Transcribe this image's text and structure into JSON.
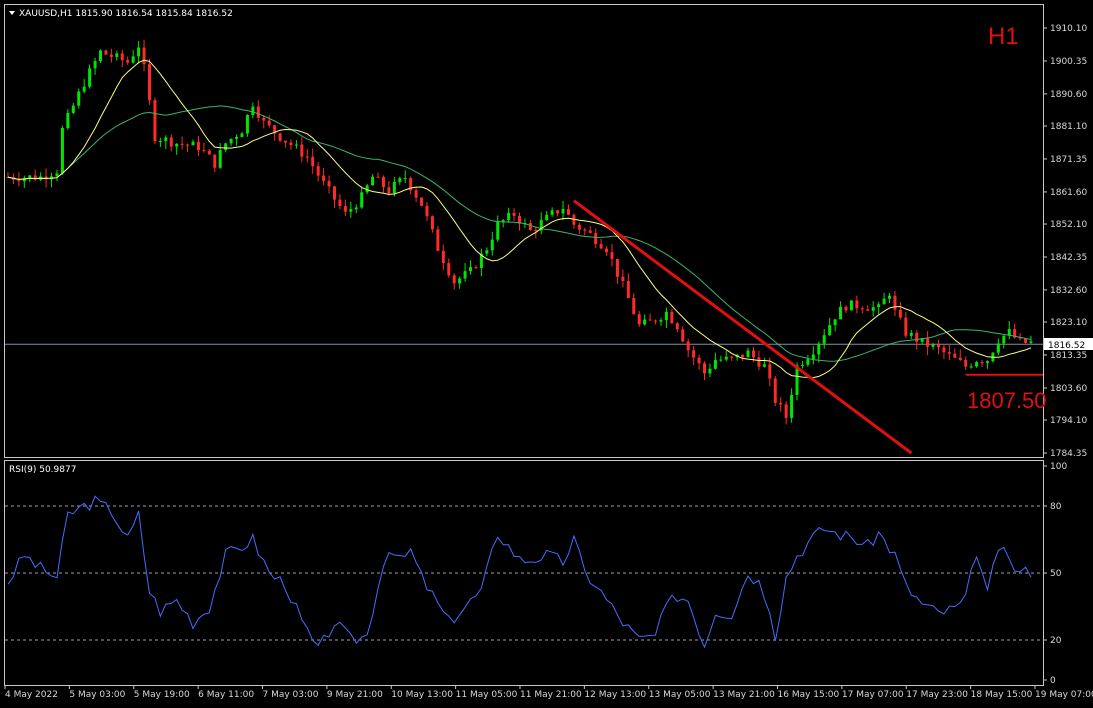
{
  "header": {
    "symbol_info": "XAUUSD,H1  1815.90 1816.54 1815.84 1816.52",
    "timeframe_label": "H1"
  },
  "price_axis": {
    "ticks": [
      "1910.10",
      "1900.35",
      "1890.60",
      "1881.10",
      "1871.35",
      "1861.60",
      "1852.10",
      "1842.35",
      "1832.60",
      "1823.10",
      "1813.35",
      "1803.60",
      "1794.10",
      "1784.35"
    ],
    "current_price": "1816.52"
  },
  "annotations": {
    "support_level_label": "1807.50",
    "support_level_value": 1807.5
  },
  "rsi": {
    "header": "RSI(9) 50.9877",
    "levels": [
      80,
      50,
      20
    ],
    "axis_ticks": [
      "100",
      "80",
      "50",
      "20",
      "0"
    ]
  },
  "time_axis": {
    "ticks": [
      "4 May 2022",
      "5 May 03:00",
      "5 May 19:00",
      "6 May 11:00",
      "7 May 03:00",
      "9 May 21:00",
      "10 May 13:00",
      "11 May 05:00",
      "11 May 21:00",
      "12 May 13:00",
      "13 May 05:00",
      "13 May 21:00",
      "16 May 15:00",
      "17 May 07:00",
      "17 May 23:00",
      "18 May 15:00",
      "19 May 07:00"
    ]
  },
  "colors": {
    "background": "#000000",
    "bull_candle": "#00e600",
    "bear_candle": "#ff2a2a",
    "ma_fast": "#ffff80",
    "ma_slow": "#3cb371",
    "rsi_line": "#3f6fff",
    "annotation": "#e01010"
  },
  "chart_data": {
    "type": "candlestick",
    "symbol": "XAUUSD",
    "timeframe": "H1",
    "ylim": [
      1784.35,
      1910.1
    ],
    "last": {
      "open": 1815.9,
      "high": 1816.54,
      "low": 1815.84,
      "close": 1816.52
    },
    "close_path": [
      {
        "t": 0,
        "p": 1866
      },
      {
        "t": 6,
        "p": 1866
      },
      {
        "t": 9,
        "p": 1868
      },
      {
        "t": 10,
        "p": 1880
      },
      {
        "t": 14,
        "p": 1894
      },
      {
        "t": 17,
        "p": 1903
      },
      {
        "t": 22,
        "p": 1900
      },
      {
        "t": 24,
        "p": 1905
      },
      {
        "t": 25,
        "p": 1898
      },
      {
        "t": 27,
        "p": 1878
      },
      {
        "t": 31,
        "p": 1876
      },
      {
        "t": 35,
        "p": 1875
      },
      {
        "t": 38,
        "p": 1870
      },
      {
        "t": 40,
        "p": 1876
      },
      {
        "t": 43,
        "p": 1880
      },
      {
        "t": 45,
        "p": 1888
      },
      {
        "t": 47,
        "p": 1882
      },
      {
        "t": 50,
        "p": 1878
      },
      {
        "t": 55,
        "p": 1872
      },
      {
        "t": 58,
        "p": 1864
      },
      {
        "t": 62,
        "p": 1855
      },
      {
        "t": 65,
        "p": 1860
      },
      {
        "t": 67,
        "p": 1866
      },
      {
        "t": 70,
        "p": 1862
      },
      {
        "t": 73,
        "p": 1866
      },
      {
        "t": 76,
        "p": 1858
      },
      {
        "t": 79,
        "p": 1845
      },
      {
        "t": 82,
        "p": 1835
      },
      {
        "t": 85,
        "p": 1838
      },
      {
        "t": 88,
        "p": 1845
      },
      {
        "t": 90,
        "p": 1852
      },
      {
        "t": 93,
        "p": 1855
      },
      {
        "t": 96,
        "p": 1850
      },
      {
        "t": 100,
        "p": 1855
      },
      {
        "t": 102,
        "p": 1857
      },
      {
        "t": 104,
        "p": 1852
      },
      {
        "t": 107,
        "p": 1849
      },
      {
        "t": 110,
        "p": 1845
      },
      {
        "t": 114,
        "p": 1830
      },
      {
        "t": 116,
        "p": 1822
      },
      {
        "t": 118,
        "p": 1823
      },
      {
        "t": 121,
        "p": 1826
      },
      {
        "t": 123,
        "p": 1822
      },
      {
        "t": 125,
        "p": 1815
      },
      {
        "t": 128,
        "p": 1808
      },
      {
        "t": 130,
        "p": 1812
      },
      {
        "t": 133,
        "p": 1812
      },
      {
        "t": 136,
        "p": 1814
      },
      {
        "t": 139,
        "p": 1810
      },
      {
        "t": 141,
        "p": 1800
      },
      {
        "t": 143,
        "p": 1795
      },
      {
        "t": 145,
        "p": 1810
      },
      {
        "t": 148,
        "p": 1815
      },
      {
        "t": 150,
        "p": 1820
      },
      {
        "t": 152,
        "p": 1825
      },
      {
        "t": 154,
        "p": 1828
      },
      {
        "t": 157,
        "p": 1828
      },
      {
        "t": 160,
        "p": 1827
      },
      {
        "t": 162,
        "p": 1832
      },
      {
        "t": 163,
        "p": 1826
      },
      {
        "t": 165,
        "p": 1820
      },
      {
        "t": 168,
        "p": 1817
      },
      {
        "t": 171,
        "p": 1815
      },
      {
        "t": 174,
        "p": 1812
      },
      {
        "t": 176,
        "p": 1810
      },
      {
        "t": 178,
        "p": 1812
      },
      {
        "t": 180,
        "p": 1812
      },
      {
        "t": 182,
        "p": 1818
      },
      {
        "t": 184,
        "p": 1820
      },
      {
        "t": 186,
        "p": 1817
      },
      {
        "t": 188,
        "p": 1817
      }
    ],
    "trendline": {
      "from": {
        "t": 104,
        "p": 1859
      },
      "to": {
        "t": 166,
        "p": 1784.35
      }
    },
    "rsi_path": [
      {
        "t": 0,
        "v": 46
      },
      {
        "t": 3,
        "v": 58
      },
      {
        "t": 6,
        "v": 52
      },
      {
        "t": 9,
        "v": 48
      },
      {
        "t": 11,
        "v": 76
      },
      {
        "t": 14,
        "v": 80
      },
      {
        "t": 16,
        "v": 82
      },
      {
        "t": 19,
        "v": 78
      },
      {
        "t": 22,
        "v": 65
      },
      {
        "t": 24,
        "v": 76
      },
      {
        "t": 26,
        "v": 42
      },
      {
        "t": 28,
        "v": 33
      },
      {
        "t": 31,
        "v": 38
      },
      {
        "t": 34,
        "v": 28
      },
      {
        "t": 37,
        "v": 35
      },
      {
        "t": 40,
        "v": 58
      },
      {
        "t": 43,
        "v": 62
      },
      {
        "t": 45,
        "v": 65
      },
      {
        "t": 48,
        "v": 50
      },
      {
        "t": 51,
        "v": 45
      },
      {
        "t": 54,
        "v": 28
      },
      {
        "t": 57,
        "v": 15
      },
      {
        "t": 60,
        "v": 28
      },
      {
        "t": 63,
        "v": 20
      },
      {
        "t": 66,
        "v": 22
      },
      {
        "t": 68,
        "v": 45
      },
      {
        "t": 70,
        "v": 62
      },
      {
        "t": 72,
        "v": 55
      },
      {
        "t": 74,
        "v": 60
      },
      {
        "t": 76,
        "v": 48
      },
      {
        "t": 78,
        "v": 40
      },
      {
        "t": 81,
        "v": 28
      },
      {
        "t": 84,
        "v": 35
      },
      {
        "t": 87,
        "v": 42
      },
      {
        "t": 90,
        "v": 68
      },
      {
        "t": 92,
        "v": 62
      },
      {
        "t": 94,
        "v": 56
      },
      {
        "t": 96,
        "v": 56
      },
      {
        "t": 99,
        "v": 58
      },
      {
        "t": 102,
        "v": 55
      },
      {
        "t": 104,
        "v": 65
      },
      {
        "t": 106,
        "v": 50
      },
      {
        "t": 108,
        "v": 45
      },
      {
        "t": 110,
        "v": 38
      },
      {
        "t": 113,
        "v": 28
      },
      {
        "t": 116,
        "v": 20
      },
      {
        "t": 119,
        "v": 22
      },
      {
        "t": 121,
        "v": 35
      },
      {
        "t": 123,
        "v": 40
      },
      {
        "t": 125,
        "v": 38
      },
      {
        "t": 128,
        "v": 18
      },
      {
        "t": 130,
        "v": 33
      },
      {
        "t": 133,
        "v": 32
      },
      {
        "t": 136,
        "v": 50
      },
      {
        "t": 138,
        "v": 46
      },
      {
        "t": 140,
        "v": 35
      },
      {
        "t": 141,
        "v": 22
      },
      {
        "t": 143,
        "v": 48
      },
      {
        "t": 145,
        "v": 58
      },
      {
        "t": 148,
        "v": 66
      },
      {
        "t": 150,
        "v": 70
      },
      {
        "t": 152,
        "v": 68
      },
      {
        "t": 155,
        "v": 66
      },
      {
        "t": 158,
        "v": 62
      },
      {
        "t": 160,
        "v": 68
      },
      {
        "t": 163,
        "v": 58
      },
      {
        "t": 165,
        "v": 44
      },
      {
        "t": 168,
        "v": 36
      },
      {
        "t": 171,
        "v": 32
      },
      {
        "t": 174,
        "v": 34
      },
      {
        "t": 176,
        "v": 38
      },
      {
        "t": 178,
        "v": 60
      },
      {
        "t": 180,
        "v": 40
      },
      {
        "t": 182,
        "v": 62
      },
      {
        "t": 184,
        "v": 55
      },
      {
        "t": 186,
        "v": 50
      },
      {
        "t": 188,
        "v": 51
      }
    ]
  }
}
